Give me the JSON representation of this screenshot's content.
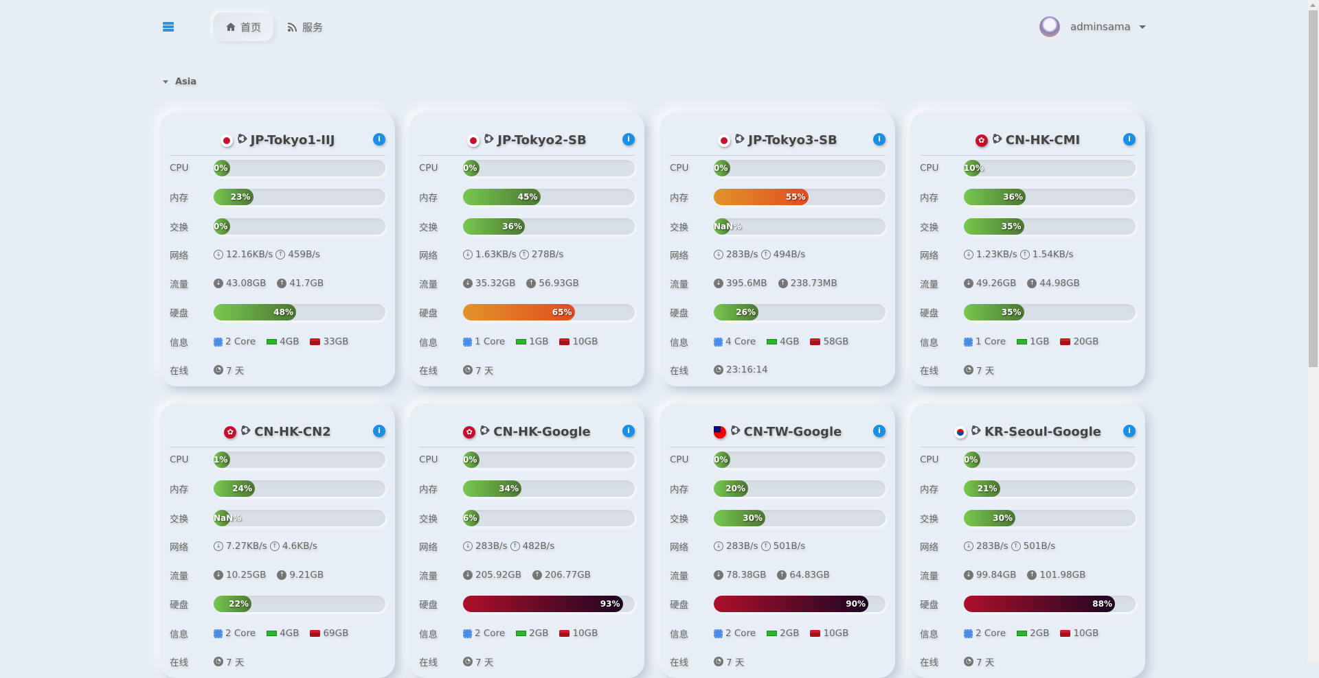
{
  "header": {
    "nav": [
      {
        "label": "首页",
        "icon": "home-icon",
        "active": true
      },
      {
        "label": "服务",
        "icon": "rss-icon"
      }
    ],
    "user": "adminsama"
  },
  "group": "Asia",
  "labels": {
    "cpu": "CPU",
    "mem": "内存",
    "swap": "交换",
    "net": "网络",
    "traffic": "流量",
    "disk": "硬盘",
    "info": "信息",
    "online": "在线"
  },
  "colors": {
    "ok": "#6bb44a",
    "warn": "#e06a25",
    "danger": "#8e0c28",
    "accent": "#1a8fe6"
  },
  "servers": [
    {
      "name": "JP-Tokyo1-IIJ",
      "flag": "jp",
      "cpu": "0%",
      "mem": "23%",
      "swap": "0%",
      "net_down": "12.16KB/s",
      "net_up": "459B/s",
      "tr_down": "43.08GB",
      "tr_up": "41.7GB",
      "disk": "48%",
      "cores": "2 Core",
      "ram": "4GB",
      "hdd": "33GB",
      "online": "7 天"
    },
    {
      "name": "JP-Tokyo2-SB",
      "flag": "jp",
      "cpu": "0%",
      "mem": "45%",
      "swap": "36%",
      "net_down": "1.63KB/s",
      "net_up": "278B/s",
      "tr_down": "35.32GB",
      "tr_up": "56.93GB",
      "disk": "65%",
      "cores": "1 Core",
      "ram": "1GB",
      "hdd": "10GB",
      "online": "7 天"
    },
    {
      "name": "JP-Tokyo3-SB",
      "flag": "jp",
      "cpu": "0%",
      "mem": "55%",
      "swap": "NaN%",
      "net_down": "283B/s",
      "net_up": "494B/s",
      "tr_down": "395.6MB",
      "tr_up": "238.73MB",
      "disk": "26%",
      "cores": "4 Core",
      "ram": "4GB",
      "hdd": "58GB",
      "online": "23:16:14"
    },
    {
      "name": "CN-HK-CMI",
      "flag": "hk",
      "cpu": "10%",
      "mem": "36%",
      "swap": "35%",
      "net_down": "1.23KB/s",
      "net_up": "1.54KB/s",
      "tr_down": "49.26GB",
      "tr_up": "44.98GB",
      "disk": "35%",
      "cores": "1 Core",
      "ram": "1GB",
      "hdd": "20GB",
      "online": "7 天"
    },
    {
      "name": "CN-HK-CN2",
      "flag": "hk",
      "cpu": "1%",
      "mem": "24%",
      "swap": "NaN%",
      "net_down": "7.27KB/s",
      "net_up": "4.6KB/s",
      "tr_down": "10.25GB",
      "tr_up": "9.21GB",
      "disk": "22%",
      "cores": "2 Core",
      "ram": "4GB",
      "hdd": "69GB",
      "online": "7 天"
    },
    {
      "name": "CN-HK-Google",
      "flag": "hk",
      "cpu": "0%",
      "mem": "34%",
      "swap": "6%",
      "net_down": "283B/s",
      "net_up": "482B/s",
      "tr_down": "205.92GB",
      "tr_up": "206.77GB",
      "disk": "93%",
      "cores": "2 Core",
      "ram": "2GB",
      "hdd": "10GB",
      "online": "7 天"
    },
    {
      "name": "CN-TW-Google",
      "flag": "tw",
      "cpu": "0%",
      "mem": "20%",
      "swap": "30%",
      "net_down": "283B/s",
      "net_up": "501B/s",
      "tr_down": "78.38GB",
      "tr_up": "64.83GB",
      "disk": "90%",
      "cores": "2 Core",
      "ram": "2GB",
      "hdd": "10GB",
      "online": "7 天"
    },
    {
      "name": "KR-Seoul-Google",
      "flag": "kr",
      "cpu": "0%",
      "mem": "21%",
      "swap": "30%",
      "net_down": "283B/s",
      "net_up": "501B/s",
      "tr_down": "99.84GB",
      "tr_up": "101.98GB",
      "disk": "88%",
      "cores": "2 Core",
      "ram": "2GB",
      "hdd": "10GB",
      "online": "7 天"
    }
  ]
}
